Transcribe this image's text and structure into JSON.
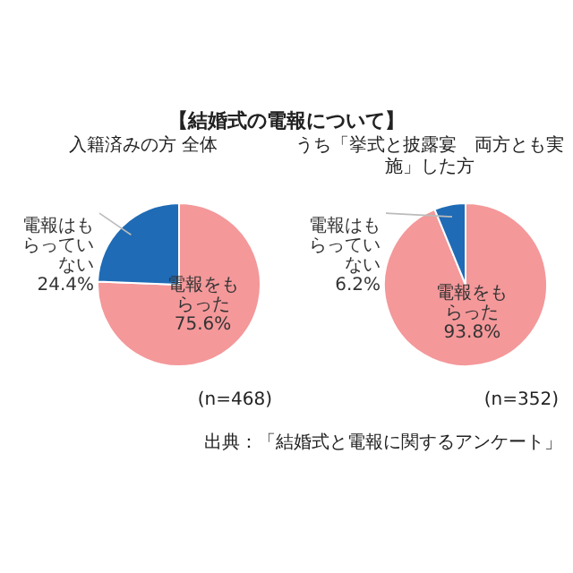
{
  "chart_data": [
    {
      "type": "pie",
      "title": "【結婚式の電報について】",
      "subtitle": "入籍済みの方 全体",
      "categories": [
        "電報をもらった",
        "電報はもらっていない"
      ],
      "values": [
        75.6,
        24.4
      ],
      "colors": [
        "#f4989a",
        "#1f6bb5"
      ],
      "value_labels": [
        "75.6%",
        "24.4%"
      ],
      "annotations": [
        "(n=468)"
      ],
      "legend": false
    },
    {
      "type": "pie",
      "subtitle": "うち「挙式と披露宴　両方とも実施」した方",
      "categories": [
        "電報をもらった",
        "電報はもらっていない"
      ],
      "values": [
        93.8,
        6.2
      ],
      "colors": [
        "#f4989a",
        "#1f6bb5"
      ],
      "value_labels": [
        "93.8%",
        "6.2%"
      ],
      "annotations": [
        "(n=352)",
        "出典：「結婚式と電報に関するアンケート」"
      ],
      "legend": false
    }
  ]
}
